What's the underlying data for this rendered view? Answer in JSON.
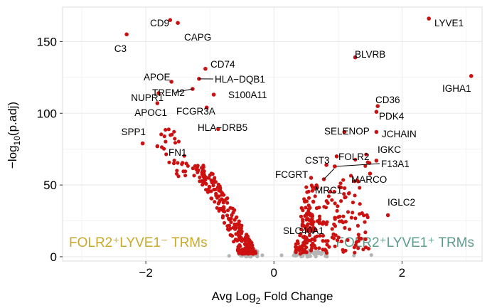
{
  "chart_data": {
    "type": "scatter",
    "title": "",
    "xlabel_base": "Avg Log",
    "xlabel_sub": "2",
    "xlabel_rest": " Fold Change",
    "ylabel_base": "−log",
    "ylabel_sub": "10",
    "ylabel_rest": "(p.adj)",
    "xlim": [
      -3.3,
      3.25
    ],
    "ylim": [
      -3,
      174
    ],
    "x_ticks": [
      -2,
      0,
      2
    ],
    "y_ticks": [
      0,
      50,
      100,
      150
    ],
    "grid": true,
    "colors": {
      "significant": "#cc1111",
      "nonsignificant": "#b5b5b5",
      "panel_bg": "#ffffff",
      "grid": "#ebebeb",
      "left_group_label": "#c8a92a",
      "right_group_label": "#5f9c8c"
    },
    "group_labels": {
      "left": "FOLR2⁺LYVE1⁻ TRMs",
      "right": "FOLR2⁺LYVE1⁺ TRMs"
    },
    "labeled_genes": [
      {
        "gene": "LYVE1",
        "x": 2.42,
        "y": 166
      },
      {
        "gene": "CD9",
        "x": -1.62,
        "y": 165
      },
      {
        "gene": "CAPG",
        "x": -1.5,
        "y": 163
      },
      {
        "gene": "C3",
        "x": -2.3,
        "y": 155
      },
      {
        "gene": "BLVRB",
        "x": 1.27,
        "y": 139
      },
      {
        "gene": "CD74",
        "x": -1.07,
        "y": 131
      },
      {
        "gene": "IGHA1",
        "x": 3.08,
        "y": 126
      },
      {
        "gene": "HLA−DQB1",
        "x": -1.17,
        "y": 124
      },
      {
        "gene": "APOE",
        "x": -1.6,
        "y": 122
      },
      {
        "gene": "TREM2",
        "x": -1.27,
        "y": 117
      },
      {
        "gene": "NUPR1",
        "x": -1.8,
        "y": 114
      },
      {
        "gene": "S100A11",
        "x": -0.94,
        "y": 113
      },
      {
        "gene": "CD36",
        "x": 1.62,
        "y": 105
      },
      {
        "gene": "APOC1",
        "x": -1.82,
        "y": 107
      },
      {
        "gene": "FCGR3A",
        "x": -1.05,
        "y": 104
      },
      {
        "gene": "PDK4",
        "x": 1.6,
        "y": 101
      },
      {
        "gene": "HLA−DRB5",
        "x": -0.87,
        "y": 89
      },
      {
        "gene": "SELENOP",
        "x": 1.1,
        "y": 87
      },
      {
        "gene": "JCHAIN",
        "x": 1.6,
        "y": 87
      },
      {
        "gene": "SPP1",
        "x": -2.05,
        "y": 79
      },
      {
        "gene": "FN1",
        "x": -1.82,
        "y": 77
      },
      {
        "gene": "IGKC",
        "x": 1.6,
        "y": 67
      },
      {
        "gene": "FOLR2",
        "x": 0.98,
        "y": 70
      },
      {
        "gene": "CST3",
        "x": 0.82,
        "y": 64
      },
      {
        "gene": "F13A1",
        "x": 0.95,
        "y": 63
      },
      {
        "gene": "MARCO",
        "x": 1.5,
        "y": 58
      },
      {
        "gene": "FCGRT",
        "x": 0.58,
        "y": 55
      },
      {
        "gene": "MRC1",
        "x": 0.78,
        "y": 54
      },
      {
        "gene": "IGLC2",
        "x": 1.78,
        "y": 29
      },
      {
        "gene": "SLC40A1",
        "x": 0.62,
        "y": 20
      }
    ]
  }
}
